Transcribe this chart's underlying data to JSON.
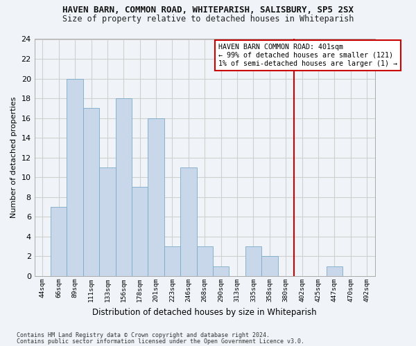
{
  "title_line1": "HAVEN BARN, COMMON ROAD, WHITEPARISH, SALISBURY, SP5 2SX",
  "title_line2": "Size of property relative to detached houses in Whiteparish",
  "xlabel": "Distribution of detached houses by size in Whiteparish",
  "ylabel": "Number of detached properties",
  "footnote1": "Contains HM Land Registry data © Crown copyright and database right 2024.",
  "footnote2": "Contains public sector information licensed under the Open Government Licence v3.0.",
  "bin_labels": [
    "44sqm",
    "66sqm",
    "89sqm",
    "111sqm",
    "133sqm",
    "156sqm",
    "178sqm",
    "201sqm",
    "223sqm",
    "246sqm",
    "268sqm",
    "290sqm",
    "313sqm",
    "335sqm",
    "358sqm",
    "380sqm",
    "402sqm",
    "425sqm",
    "447sqm",
    "470sqm",
    "492sqm"
  ],
  "bar_values": [
    0,
    7,
    20,
    17,
    11,
    18,
    9,
    16,
    3,
    11,
    3,
    1,
    0,
    3,
    2,
    0,
    0,
    0,
    1,
    0,
    0
  ],
  "bar_color": "#c8d8ea",
  "bar_edge_color": "#7aaac8",
  "grid_color": "#d0d0d0",
  "vline_x_index": 16,
  "vline_color": "#cc0000",
  "annotation_text_line1": "HAVEN BARN COMMON ROAD: 401sqm",
  "annotation_text_line2": "← 99% of detached houses are smaller (121)",
  "annotation_text_line3": "1% of semi-detached houses are larger (1) →",
  "annotation_box_color": "#cc0000",
  "ylim": [
    0,
    24
  ],
  "yticks": [
    0,
    2,
    4,
    6,
    8,
    10,
    12,
    14,
    16,
    18,
    20,
    22,
    24
  ],
  "background_color": "#f0f4f8"
}
